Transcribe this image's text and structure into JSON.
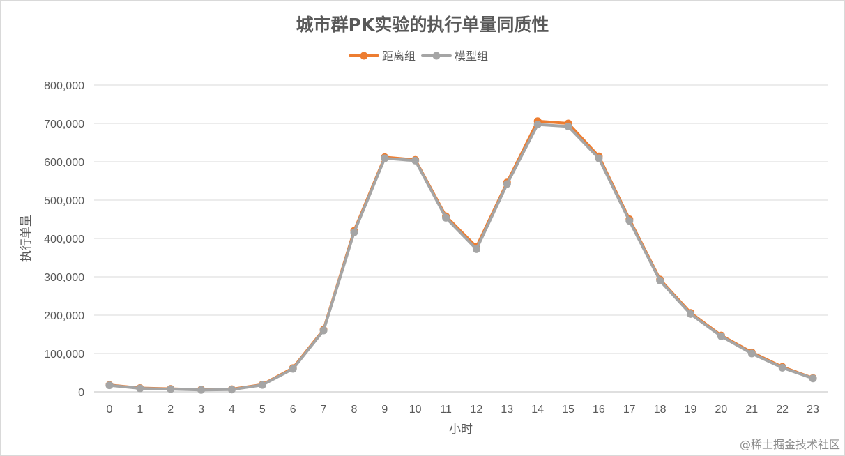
{
  "chart_data": {
    "type": "line",
    "title": "城市群PK实验的执行单量同质性",
    "xlabel": "小时",
    "ylabel": "执行单量",
    "categories": [
      "0",
      "1",
      "2",
      "3",
      "4",
      "5",
      "6",
      "7",
      "8",
      "9",
      "10",
      "11",
      "12",
      "13",
      "14",
      "15",
      "16",
      "17",
      "18",
      "19",
      "20",
      "21",
      "22",
      "23"
    ],
    "ylim": [
      0,
      800000
    ],
    "yticks": [
      "0",
      "100,000",
      "200,000",
      "300,000",
      "400,000",
      "500,000",
      "600,000",
      "700,000",
      "800,000"
    ],
    "grid": true,
    "legend_position": "top-center",
    "series": [
      {
        "name": "距离组",
        "color": "#ed7d31",
        "values": [
          18000,
          10000,
          8000,
          6000,
          7000,
          19000,
          62000,
          162000,
          420000,
          612000,
          605000,
          458000,
          378000,
          546000,
          706000,
          700000,
          614000,
          450000,
          293000,
          206000,
          147000,
          103000,
          65000,
          36000
        ]
      },
      {
        "name": "模型组",
        "color": "#a5a5a5",
        "values": [
          17000,
          9000,
          7000,
          5000,
          6000,
          18000,
          60000,
          160000,
          416000,
          609000,
          603000,
          454000,
          372000,
          542000,
          697000,
          692000,
          609000,
          446000,
          290000,
          203000,
          145000,
          100000,
          63000,
          35000
        ]
      }
    ]
  },
  "watermark": "@稀土掘金技术社区"
}
